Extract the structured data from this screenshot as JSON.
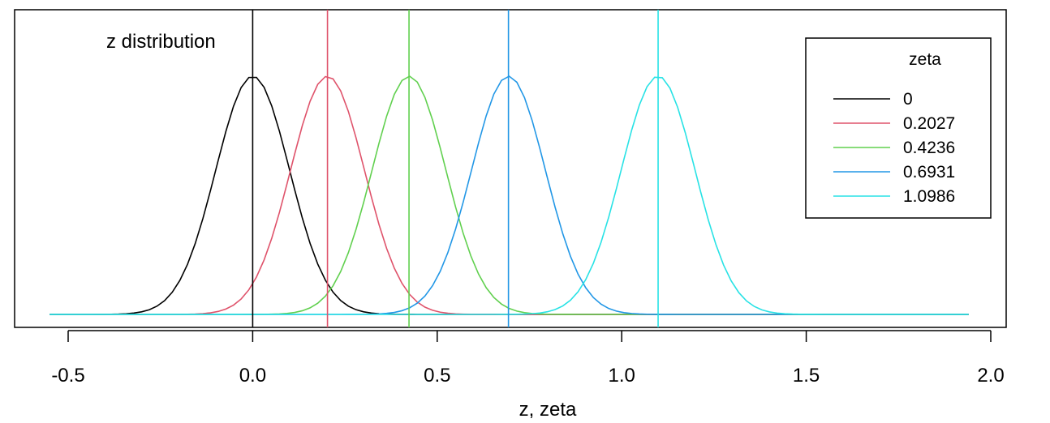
{
  "chart_data": {
    "type": "line",
    "title": "z distribution",
    "xlabel": "z, zeta",
    "ylabel": "",
    "xlim": [
      -0.58,
      2.1
    ],
    "ylim": [
      0,
      1.05
    ],
    "x_ticks": [
      {
        "value": -0.5,
        "label": "-0.5"
      },
      {
        "value": 0.0,
        "label": "0.0"
      },
      {
        "value": 0.5,
        "label": "0.5"
      },
      {
        "value": 1.0,
        "label": "1.0"
      },
      {
        "value": 1.5,
        "label": "1.5"
      },
      {
        "value": 2.0,
        "label": "2.0"
      }
    ],
    "y_axis_shown": false,
    "grid": false,
    "x_range_of_curves": [
      -0.55,
      1.94
    ],
    "curve_sd": 0.1,
    "curve_peak": 1.0,
    "legend": {
      "title": "zeta",
      "placement": "top-right"
    },
    "series": [
      {
        "name": "0",
        "center": 0.0,
        "color": "#000000"
      },
      {
        "name": "0.2027",
        "center": 0.2027,
        "color": "#DF536B"
      },
      {
        "name": "0.4236",
        "center": 0.4236,
        "color": "#61D04F"
      },
      {
        "name": "0.6931",
        "center": 0.6931,
        "color": "#2297E6"
      },
      {
        "name": "1.0986",
        "center": 1.0986,
        "color": "#28E2E5"
      }
    ],
    "vertical_lines": [
      0.0,
      0.2027,
      0.4236,
      0.6931,
      1.0986
    ]
  }
}
